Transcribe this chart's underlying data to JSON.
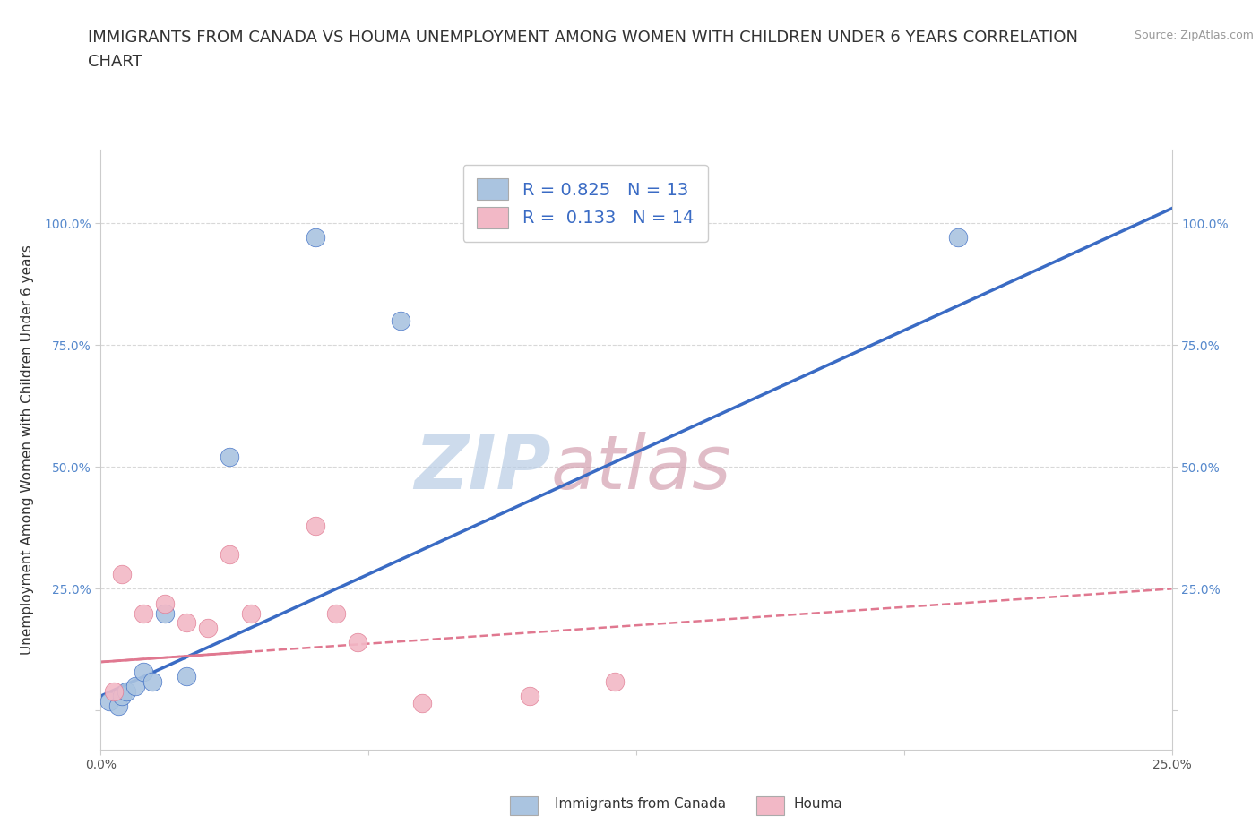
{
  "title_line1": "IMMIGRANTS FROM CANADA VS HOUMA UNEMPLOYMENT AMONG WOMEN WITH CHILDREN UNDER 6 YEARS CORRELATION",
  "title_line2": "CHART",
  "source": "Source: ZipAtlas.com",
  "ylabel": "Unemployment Among Women with Children Under 6 years",
  "legend_label1": "Immigrants from Canada",
  "legend_label2": "Houma",
  "R1": 0.825,
  "N1": 13,
  "R2": 0.133,
  "N2": 14,
  "blue_color": "#aac4e0",
  "pink_color": "#f2b8c6",
  "blue_line_color": "#3a6bc4",
  "pink_line_color": "#e07890",
  "background_color": "#ffffff",
  "watermark": "ZIPatlas",
  "watermark_color_zip": "#b8cce4",
  "watermark_color_atlas": "#d4a0b0",
  "blue_x": [
    0.2,
    0.4,
    0.5,
    0.6,
    0.8,
    1.0,
    1.2,
    1.5,
    2.0,
    3.0,
    5.0,
    7.0,
    20.0
  ],
  "blue_y": [
    2.0,
    1.0,
    3.0,
    4.0,
    5.0,
    8.0,
    6.0,
    20.0,
    7.0,
    52.0,
    97.0,
    80.0,
    97.0
  ],
  "pink_x": [
    0.3,
    0.5,
    1.0,
    1.5,
    2.0,
    2.5,
    3.0,
    3.5,
    5.0,
    5.5,
    6.0,
    7.5,
    10.0,
    12.0
  ],
  "pink_y": [
    4.0,
    28.0,
    20.0,
    22.0,
    18.0,
    17.0,
    32.0,
    20.0,
    38.0,
    20.0,
    14.0,
    1.5,
    3.0,
    6.0
  ],
  "blue_trendline_x": [
    0,
    25
  ],
  "blue_trendline_y": [
    3.0,
    103.0
  ],
  "pink_trendline_x": [
    0,
    25
  ],
  "pink_trendline_y": [
    10.0,
    25.0
  ],
  "xlim": [
    0,
    25
  ],
  "ylim": [
    -8,
    115
  ],
  "xticks": [
    0,
    6.25,
    12.5,
    18.75,
    25
  ],
  "xticklabels": [
    "0.0%",
    "",
    "",
    "",
    "25.0%"
  ],
  "yticks": [
    0,
    25,
    50,
    75,
    100
  ],
  "yticklabels": [
    "",
    "25.0%",
    "50.0%",
    "75.0%",
    "100.0%"
  ],
  "grid_color": "#d8d8d8",
  "marker_size": 220,
  "title_fontsize": 13,
  "axis_label_fontsize": 11,
  "tick_fontsize": 10,
  "legend_fontsize": 14
}
